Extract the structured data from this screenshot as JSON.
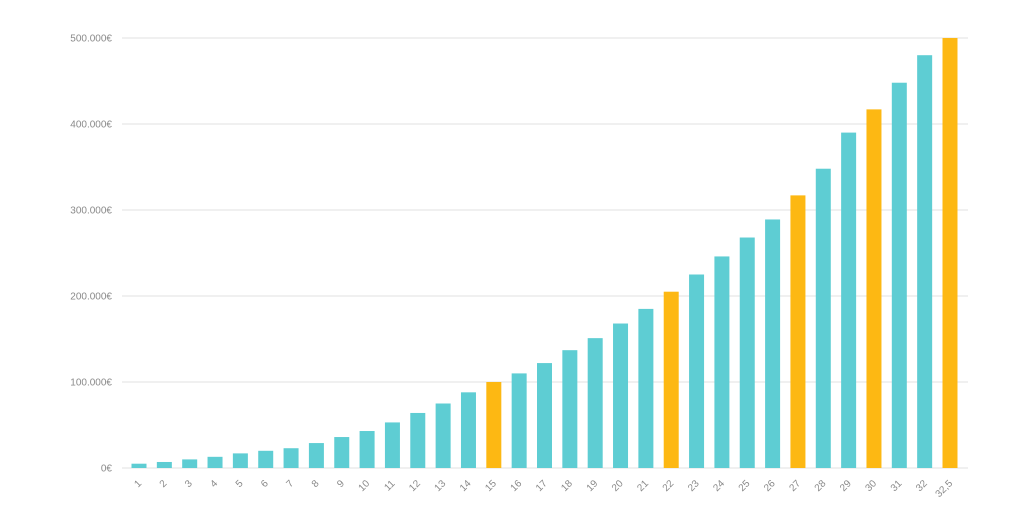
{
  "chart_data": {
    "type": "bar",
    "title": "",
    "xlabel": "",
    "ylabel": "",
    "ylim": [
      0,
      500000
    ],
    "yticks": [
      0,
      100000,
      200000,
      300000,
      400000,
      500000
    ],
    "ytick_labels": [
      "0€",
      "100.000€",
      "200.000€",
      "300.000€",
      "400.000€",
      "500.000€"
    ],
    "grid": "horizontal",
    "categories": [
      "1",
      "2",
      "3",
      "4",
      "5",
      "6",
      "7",
      "8",
      "9",
      "10",
      "11",
      "12",
      "13",
      "14",
      "15",
      "16",
      "17",
      "18",
      "19",
      "20",
      "21",
      "22",
      "23",
      "24",
      "25",
      "26",
      "27",
      "28",
      "29",
      "30",
      "31",
      "32",
      "32,5"
    ],
    "values": [
      5000,
      7000,
      10000,
      13000,
      17000,
      20000,
      23000,
      29000,
      36000,
      43000,
      53000,
      64000,
      75000,
      88000,
      100000,
      110000,
      122000,
      137000,
      151000,
      168000,
      185000,
      205000,
      225000,
      246000,
      268000,
      289000,
      317000,
      348000,
      390000,
      417000,
      448000,
      480000,
      500000
    ],
    "highlighted": [
      "15",
      "22",
      "27",
      "30",
      "32,5"
    ],
    "colors": {
      "default": "#5ecdd3",
      "highlight": "#fdb813",
      "grid": "#e2e2e2",
      "axis_text": "#8a8a8a"
    }
  }
}
